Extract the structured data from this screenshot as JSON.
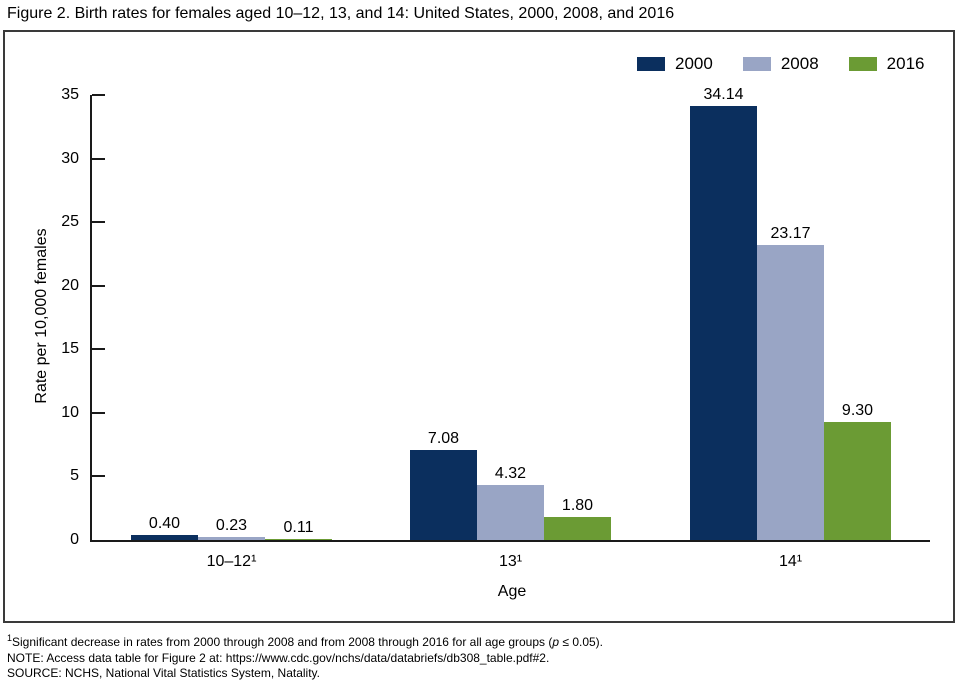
{
  "title": "Figure 2. Birth rates for females aged 10–12, 13, and 14: United States, 2000, 2008, and 2016",
  "legend": [
    {
      "label": "2000",
      "color": "#0b2f5e"
    },
    {
      "label": "2008",
      "color": "#99a5c5"
    },
    {
      "label": "2016",
      "color": "#6b9b34"
    }
  ],
  "chart_data": {
    "type": "bar",
    "title": "Figure 2. Birth rates for females aged 10–12, 13, and 14: United States, 2000, 2008, and 2016",
    "categories": [
      "10–12¹",
      "13¹",
      "14¹"
    ],
    "series": [
      {
        "name": "2000",
        "color": "#0b2f5e",
        "values": [
          0.4,
          7.08,
          34.14
        ]
      },
      {
        "name": "2008",
        "color": "#99a5c5",
        "values": [
          0.23,
          4.32,
          23.17
        ]
      },
      {
        "name": "2016",
        "color": "#6b9b34",
        "values": [
          0.11,
          1.8,
          9.3
        ]
      }
    ],
    "xlabel": "Age",
    "ylabel": "Rate per 10,000 females",
    "ylim": [
      0,
      35
    ],
    "yticks": [
      0,
      5,
      10,
      15,
      20,
      25,
      30,
      35
    ],
    "grid": "off",
    "legend_position": "top-right",
    "value_label_format": "2-decimals"
  },
  "footnotes": {
    "line1_sup": "1",
    "line1_before_p": "Significant decrease in rates from 2000 through 2008 and from 2008 through 2016 for all age groups (",
    "line1_p": "p",
    "line1_after_p": " ≤ 0.05).",
    "line2": "NOTE: Access data table for Figure 2 at: https://www.cdc.gov/nchs/data/databriefs/db308_table.pdf#2.",
    "line3": "SOURCE: NCHS, National Vital Statistics System, Natality."
  }
}
